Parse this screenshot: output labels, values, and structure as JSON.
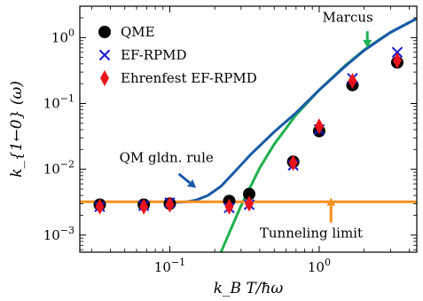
{
  "chart_data": {
    "type": "scatter",
    "xlabel": "k_B T/ħω",
    "ylabel": "k_{1←0} (ω)",
    "xscale": "log",
    "yscale": "log",
    "xlim": [
      0.025,
      4.5
    ],
    "ylim": [
      0.00055,
      3.0
    ],
    "grid": false,
    "legend_position": "top-left",
    "x_ticks": [
      {
        "value": 0.1,
        "base": "10",
        "exp": "−1"
      },
      {
        "value": 1,
        "base": "10",
        "exp": "0"
      }
    ],
    "y_ticks": [
      {
        "value": 0.001,
        "base": "10",
        "exp": "−3"
      },
      {
        "value": 0.01,
        "base": "10",
        "exp": "−2"
      },
      {
        "value": 0.1,
        "base": "10",
        "exp": "−1"
      },
      {
        "value": 1,
        "base": "10",
        "exp": "0"
      }
    ],
    "series": [
      {
        "name": "QME",
        "kind": "markers",
        "marker": "circle",
        "color": "#000000",
        "points": [
          [
            0.034,
            0.0029
          ],
          [
            0.067,
            0.0029
          ],
          [
            0.1,
            0.003
          ],
          [
            0.25,
            0.0033
          ],
          [
            0.34,
            0.0042
          ],
          [
            0.67,
            0.013
          ],
          [
            1.0,
            0.038
          ],
          [
            1.67,
            0.19
          ],
          [
            3.33,
            0.42
          ]
        ]
      },
      {
        "name": "EF-RPMD",
        "kind": "markers",
        "marker": "x",
        "color": "#1a1acc",
        "points": [
          [
            0.034,
            0.0027
          ],
          [
            0.067,
            0.0028
          ],
          [
            0.1,
            0.0031
          ],
          [
            0.25,
            0.0026
          ],
          [
            0.34,
            0.0029
          ],
          [
            0.67,
            0.0115
          ],
          [
            1.0,
            0.04
          ],
          [
            1.67,
            0.24
          ],
          [
            3.33,
            0.6
          ]
        ]
      },
      {
        "name": "Ehrenfest EF-RPMD",
        "kind": "markers",
        "marker": "diamond",
        "color": "#e8141c",
        "points": [
          [
            0.034,
            0.0027
          ],
          [
            0.067,
            0.0027
          ],
          [
            0.1,
            0.0029
          ],
          [
            0.25,
            0.0027
          ],
          [
            0.34,
            0.003
          ],
          [
            0.67,
            0.0125
          ],
          [
            1.0,
            0.045
          ],
          [
            1.67,
            0.22
          ],
          [
            3.33,
            0.45
          ]
        ]
      },
      {
        "name": "Marcus",
        "kind": "line",
        "color": "#1fb14f",
        "points": [
          [
            0.22,
            0.00055
          ],
          [
            0.3,
            0.0028
          ],
          [
            0.4,
            0.0105
          ],
          [
            0.5,
            0.024
          ],
          [
            0.7,
            0.067
          ],
          [
            1.0,
            0.16
          ],
          [
            1.5,
            0.38
          ],
          [
            2.0,
            0.65
          ],
          [
            2.5,
            0.92
          ],
          [
            3.0,
            1.2
          ],
          [
            3.5,
            1.45
          ],
          [
            4.5,
            1.95
          ]
        ]
      },
      {
        "name": "QM gldn. rule",
        "kind": "line",
        "color": "#1a5aa8",
        "points": [
          [
            0.1,
            0.0031
          ],
          [
            0.13,
            0.0032
          ],
          [
            0.15,
            0.0034
          ],
          [
            0.18,
            0.004
          ],
          [
            0.22,
            0.0055
          ],
          [
            0.27,
            0.009
          ],
          [
            0.35,
            0.017
          ],
          [
            0.5,
            0.037
          ],
          [
            0.7,
            0.072
          ],
          [
            1.0,
            0.16
          ],
          [
            1.5,
            0.37
          ],
          [
            2.0,
            0.64
          ],
          [
            3.0,
            1.2
          ],
          [
            4.5,
            1.95
          ]
        ]
      },
      {
        "name": "Tunneling limit",
        "kind": "hline",
        "color": "#f5901e",
        "y": 0.0032
      }
    ],
    "annotations": [
      {
        "text": "Marcus",
        "at": [
          1.05,
          1.75
        ],
        "anchor": "start",
        "arrow_color": "#1fb14f",
        "arrow_from": [
          2.1,
          1.25
        ],
        "arrow_to": [
          2.1,
          0.7
        ]
      },
      {
        "text": "QM gldn. rule",
        "at": [
          0.046,
          0.0128
        ],
        "anchor": "start",
        "arrow_color": "#1a5aa8",
        "arrow_from": [
          0.115,
          0.0085
        ],
        "arrow_to": [
          0.15,
          0.0052
        ]
      },
      {
        "text": "Tunneling limit",
        "at": [
          0.4,
          0.00092
        ],
        "anchor": "start",
        "arrow_color": "#f5901e",
        "arrow_from": [
          1.2,
          0.00155
        ],
        "arrow_to": [
          1.2,
          0.0037
        ]
      }
    ]
  }
}
